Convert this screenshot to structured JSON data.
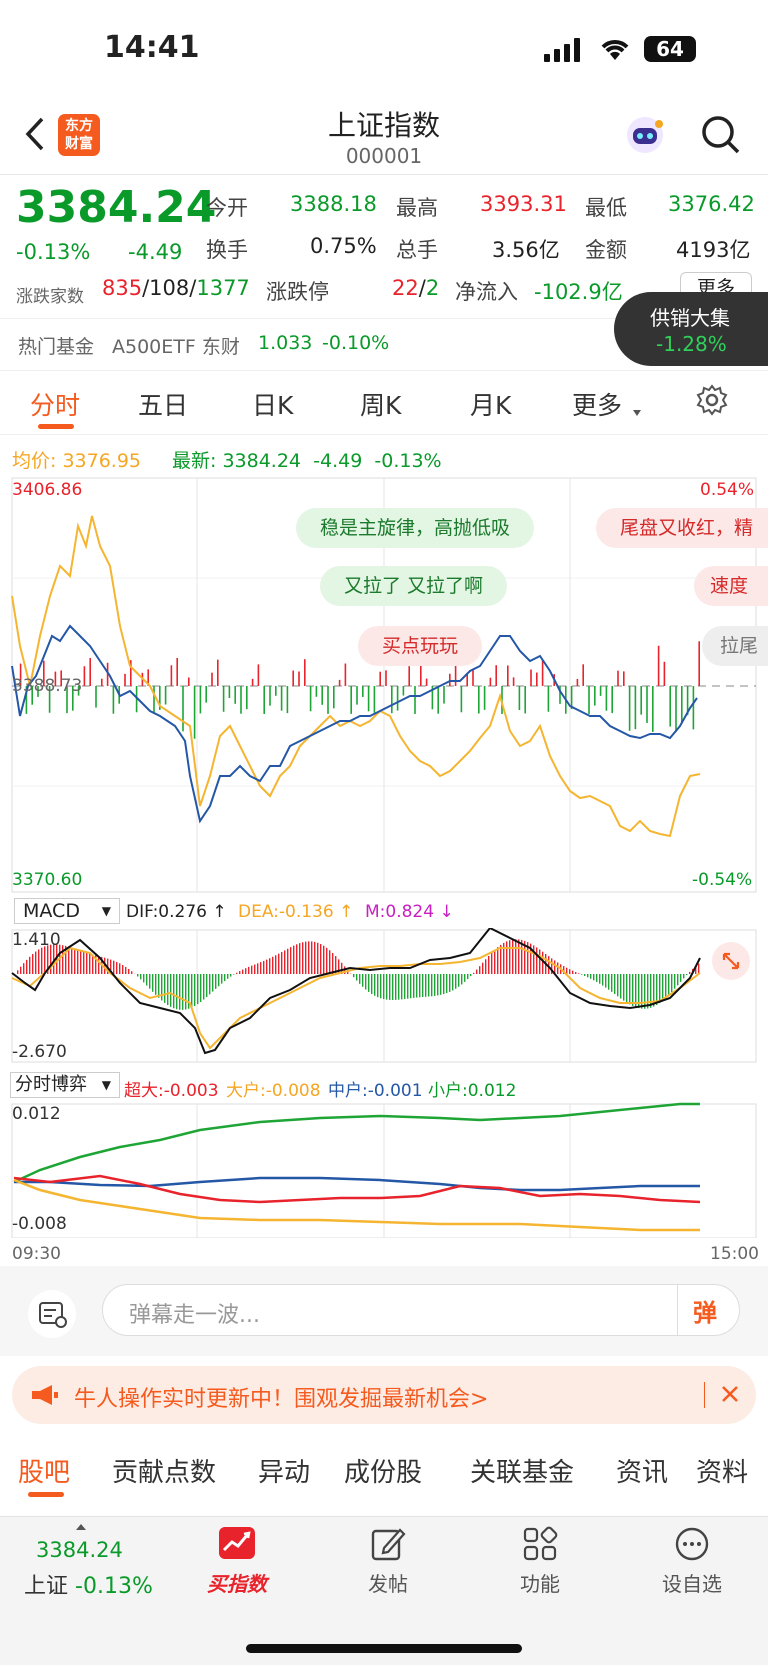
{
  "status_bar": {
    "time": "14:41",
    "battery": "64"
  },
  "header": {
    "title": "上证指数",
    "code": "000001",
    "logo_line1": "东方",
    "logo_line2": "财富"
  },
  "quote": {
    "price": "3384.24",
    "change_pct": "-0.13%",
    "change": "-4.49",
    "open_label": "今开",
    "open": "3388.18",
    "high_label": "最高",
    "high": "3393.31",
    "low_label": "最低",
    "low": "3376.42",
    "turnover_label": "换手",
    "turnover": "0.75%",
    "volume_label": "总手",
    "volume": "3.56亿",
    "amount_label": "金额",
    "amount": "4193亿",
    "breadth_label": "涨跌家数",
    "breadth_up": "835",
    "breadth_flat": "108",
    "breadth_down": "1377",
    "limit_label": "涨跌停",
    "limit_up": "22",
    "limit_down": "2",
    "netflow_label": "净流入",
    "netflow": "-102.9亿",
    "more_button": "更多"
  },
  "hot_fund": {
    "label": "热门基金",
    "name": "A500ETF 东财",
    "price": "1.033",
    "change": "-0.10%"
  },
  "floating_badge": {
    "name": "供销大集",
    "change": "-1.28%"
  },
  "chart_tabs": [
    "分时",
    "五日",
    "日K",
    "周K",
    "月K",
    "更多"
  ],
  "chart_header": {
    "avg_label": "均价:",
    "avg_value": "3376.95",
    "latest_label": "最新:",
    "latest_value": "3384.24",
    "latest_change": "-4.49",
    "latest_pct": "-0.13%"
  },
  "price_axis": {
    "top": "3406.86",
    "bottom": "3370.60",
    "mid": "3388.73",
    "top_pct": "0.54%",
    "bottom_pct": "-0.54%"
  },
  "danmu": [
    {
      "text": "稳是主旋律，高抛低吸",
      "tone": "green"
    },
    {
      "text": "尾盘又收红，精",
      "tone": "red"
    },
    {
      "text": "又拉了 又拉了啊",
      "tone": "green"
    },
    {
      "text": "速度",
      "tone": "red"
    },
    {
      "text": "买点玩玩",
      "tone": "red"
    },
    {
      "text": "拉尾",
      "tone": "gray"
    }
  ],
  "macd": {
    "selector": "MACD",
    "dif": "DIF:0.276 ↑",
    "dea": "DEA:-0.136 ↑",
    "m": "M:0.824 ↓",
    "top": "1.410",
    "bottom": "-2.670"
  },
  "flow": {
    "selector": "分时博弈",
    "super": "超大:-0.003",
    "large": "大户:-0.008",
    "mid": "中户:-0.001",
    "small": "小户:0.012",
    "top": "0.012",
    "bottom": "-0.008",
    "time_start": "09:30",
    "time_end": "15:00"
  },
  "comment_input": {
    "placeholder": "弹幕走一波...",
    "send": "弹"
  },
  "banner": {
    "text": "牛人操作实时更新中！围观发掘最新机会>"
  },
  "bottom_tabs": [
    "股吧",
    "贡献点数",
    "异动",
    "成份股",
    "关联基金",
    "资讯",
    "资料"
  ],
  "bottom_nav": {
    "index_price": "3384.24",
    "index_label": "上证",
    "index_pct": "-0.13%",
    "buy": "买指数",
    "post": "发帖",
    "functions": "功能",
    "watchlist": "设自选"
  },
  "colors": {
    "up": "#e8232c",
    "down": "#0a9a2a",
    "accent": "#f55a1f",
    "avg_line": "#f5b531",
    "price_line": "#2457a6"
  }
}
